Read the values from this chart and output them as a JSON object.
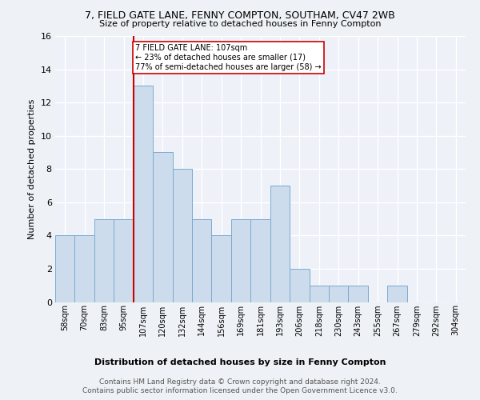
{
  "title1": "7, FIELD GATE LANE, FENNY COMPTON, SOUTHAM, CV47 2WB",
  "title2": "Size of property relative to detached houses in Fenny Compton",
  "xlabel": "Distribution of detached houses by size in Fenny Compton",
  "ylabel": "Number of detached properties",
  "categories": [
    "58sqm",
    "70sqm",
    "83sqm",
    "95sqm",
    "107sqm",
    "120sqm",
    "132sqm",
    "144sqm",
    "156sqm",
    "169sqm",
    "181sqm",
    "193sqm",
    "206sqm",
    "218sqm",
    "230sqm",
    "243sqm",
    "255sqm",
    "267sqm",
    "279sqm",
    "292sqm",
    "304sqm"
  ],
  "values": [
    4,
    4,
    5,
    5,
    13,
    9,
    8,
    5,
    4,
    5,
    5,
    7,
    2,
    1,
    1,
    1,
    0,
    1,
    0,
    0,
    0
  ],
  "bar_color": "#ccdcec",
  "bar_edge_color": "#7aaad0",
  "highlight_index": 4,
  "vline_color": "#cc0000",
  "annotation_line1": "7 FIELD GATE LANE: 107sqm",
  "annotation_line2": "← 23% of detached houses are smaller (17)",
  "annotation_line3": "77% of semi-detached houses are larger (58) →",
  "annotation_box_color": "#ffffff",
  "annotation_box_edge": "#cc0000",
  "ylim": [
    0,
    16
  ],
  "yticks": [
    0,
    2,
    4,
    6,
    8,
    10,
    12,
    14,
    16
  ],
  "footer1": "Contains HM Land Registry data © Crown copyright and database right 2024.",
  "footer2": "Contains public sector information licensed under the Open Government Licence v3.0.",
  "bg_color": "#eef2f6",
  "plot_bg_color": "#eef2f8"
}
